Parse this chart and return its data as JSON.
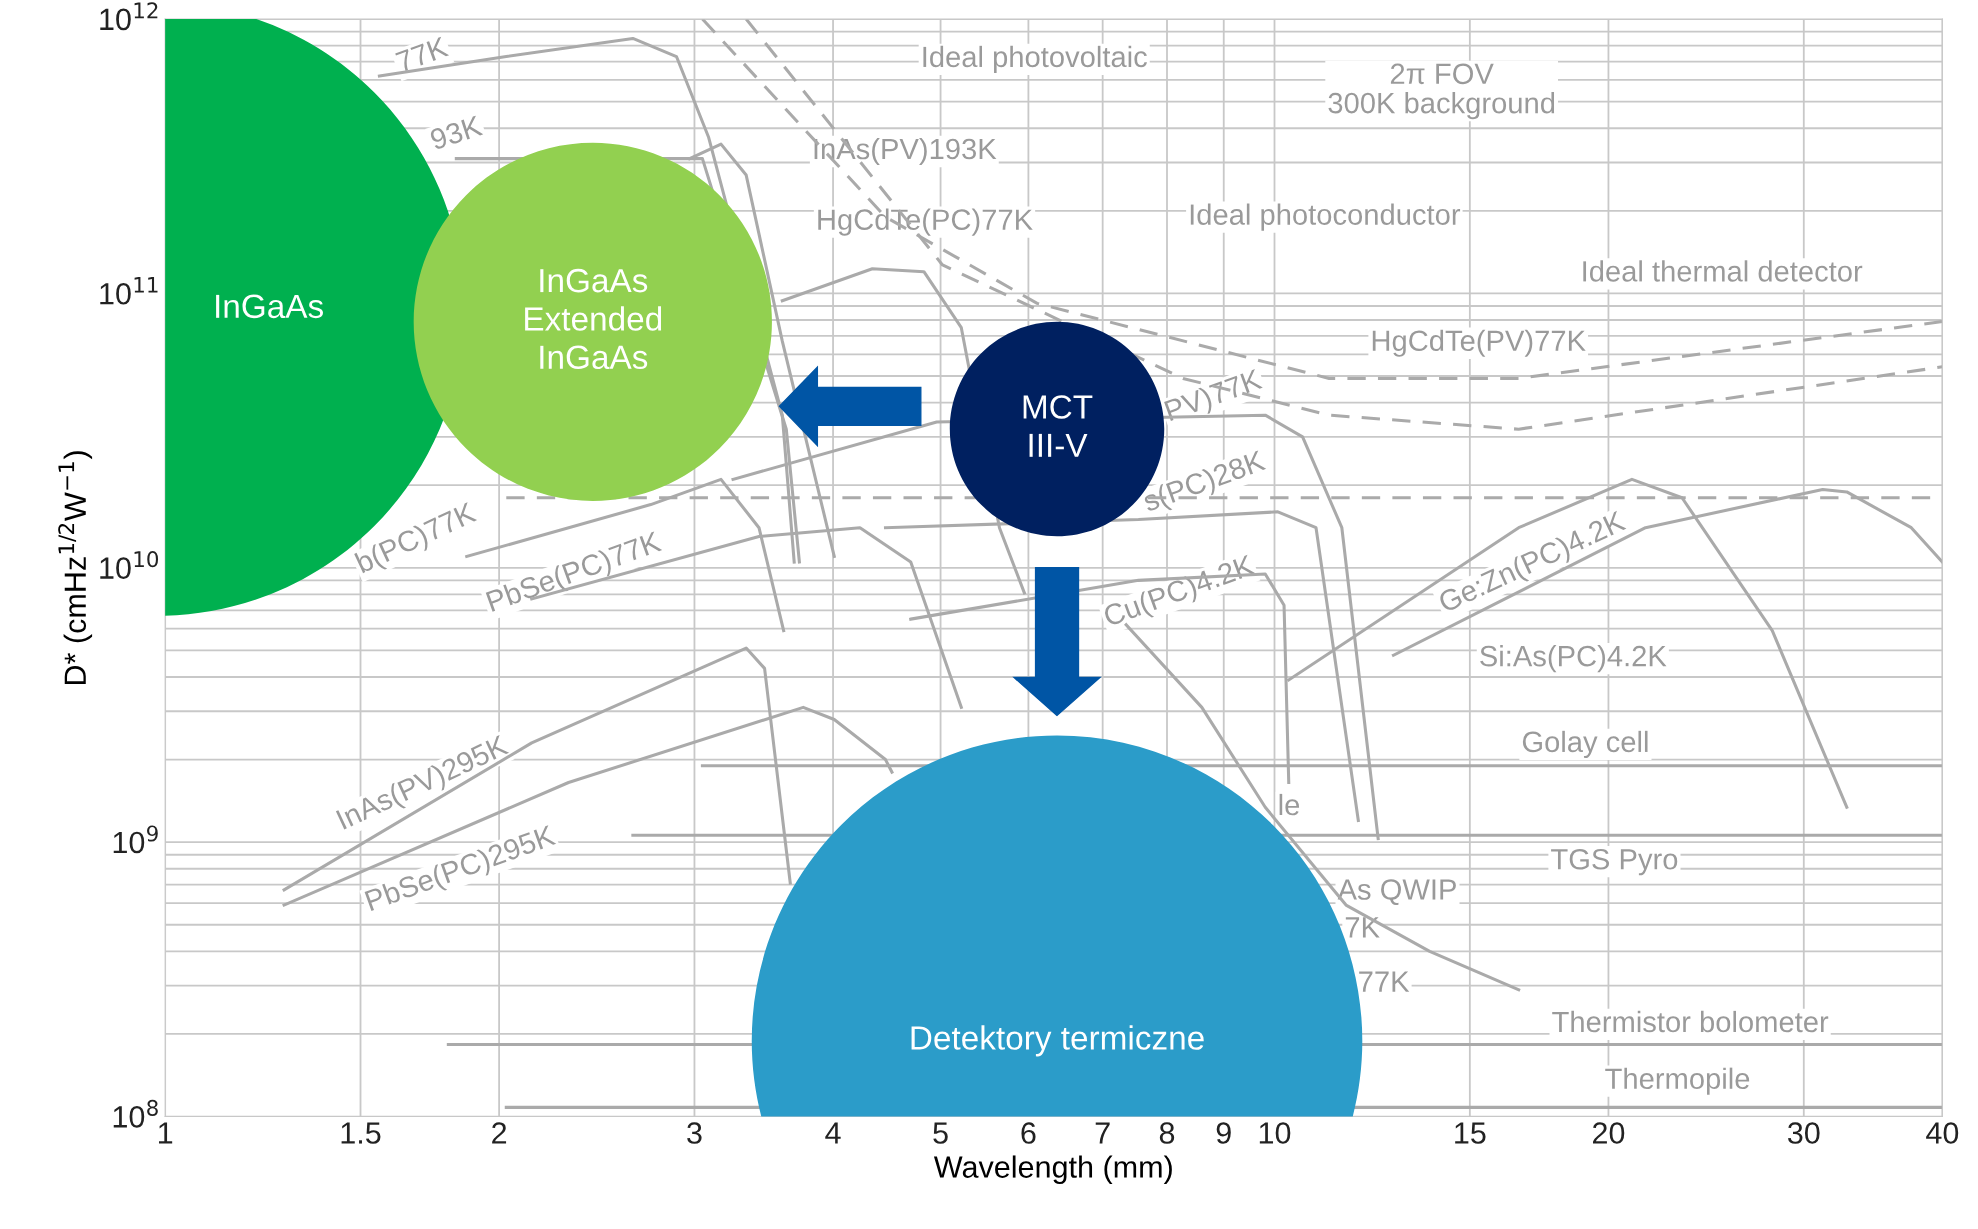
{
  "chart_data": {
    "type": "line",
    "xlabel": "Wavelength (mm)",
    "ylabel": "D* (cmHz$^{1/2}$W$^{−1}$)",
    "log": "xy",
    "grid": true,
    "xlim": [
      1,
      40
    ],
    "xticks": [
      1,
      1.5,
      2,
      3,
      4,
      5,
      6,
      7,
      8,
      9,
      10,
      15,
      20,
      30,
      40
    ],
    "ylim": [
      100000000.0,
      1000000000000.0
    ],
    "yticks": [
      {
        "value": 100000000.0,
        "label": "10$^{8}$"
      },
      {
        "value": 1000000000.0,
        "label": "10$^{9}$"
      },
      {
        "value": 10000000000.0,
        "label": "10$^{10}$"
      },
      {
        "value": 100000000000.0,
        "label": "10$^{11}$"
      },
      {
        "value": 1000000000000.0,
        "label": "10$^{12}$"
      }
    ],
    "series": [
      {
        "color": "#aaaaaa",
        "line_style": "dashed",
        "x": [
          3.05,
          4.46,
          6.11,
          11.2,
          16.6,
          40
        ],
        "values": [
          1000000000000.0,
          190000000000.0,
          92000000000.0,
          49000000000.0,
          49000000000.0,
          79000000000.0
        ]
      },
      {
        "color": "#aaaaaa",
        "line_style": "dashed",
        "x": [
          3.34,
          5.02,
          8.27,
          11.2,
          16.6,
          40
        ],
        "values": [
          1000000000000.0,
          127000000000.0,
          49000000000.0,
          36000000000.0,
          32000000000.0,
          54000000000.0
        ]
      },
      {
        "color": "#aaaaaa",
        "line_style": "dashed",
        "x": [
          2.03,
          40
        ],
        "values": [
          18000000000.0,
          18000000000.0
        ]
      },
      {
        "color": "#aaaaaa",
        "line_style": "solid",
        "x": [
          1.56,
          2.03,
          2.64,
          2.89,
          3.09,
          3.6,
          3.69
        ],
        "values": [
          620000000000.0,
          730000000000.0,
          850000000000.0,
          730000000000.0,
          370000000000.0,
          36000000000.0,
          10500000000.0
        ]
      },
      {
        "color": "#aaaaaa",
        "line_style": "solid",
        "x": [
          1.83,
          3.05,
          3.63,
          3.73
        ],
        "values": [
          310000000000.0,
          310000000000.0,
          32000000000.0,
          10500000000.0
        ]
      },
      {
        "color": "#aaaaaa",
        "line_style": "solid",
        "x": [
          2.97,
          3.17,
          3.34,
          3.6,
          4.01
        ],
        "values": [
          310000000000.0,
          350000000000.0,
          270000000000.0,
          67000000000.0,
          11000000000.0
        ]
      },
      {
        "color": "#aaaaaa",
        "line_style": "solid",
        "x": [
          3.6,
          4.34,
          4.83,
          5.22,
          5.65,
          5.95
        ],
        "values": [
          94000000000.0,
          123000000000.0,
          120000000000.0,
          75000000000.0,
          14000000000.0,
          8100000000.0
        ]
      },
      {
        "color": "#aaaaaa",
        "line_style": "solid",
        "x": [
          3.25,
          4.96,
          9.81,
          10.6,
          11.5,
          12.4
        ],
        "values": [
          21000000000.0,
          34000000000.0,
          36000000000.0,
          30000000000.0,
          14000000000.0,
          1030000000.0
        ]
      },
      {
        "color": "#aaaaaa",
        "line_style": "solid",
        "x": [
          1.87,
          2.74,
          3.17,
          3.43,
          3.61
        ],
        "values": [
          11000000000.0,
          17000000000.0,
          21000000000.0,
          14000000000.0,
          5900000000.0
        ]
      },
      {
        "color": "#aaaaaa",
        "line_style": "solid",
        "x": [
          2.14,
          3.43,
          4.23,
          4.7,
          5.22
        ],
        "values": [
          7700000000.0,
          13000000000.0,
          14000000000.0,
          10500000000.0,
          3100000000.0
        ]
      },
      {
        "color": "#aaaaaa",
        "line_style": "solid",
        "x": [
          4.46,
          7.54,
          10.07,
          10.9,
          11.9
        ],
        "values": [
          14000000000.0,
          15000000000.0,
          16000000000.0,
          14000000000.0,
          1200000000.0
        ]
      },
      {
        "color": "#aaaaaa",
        "line_style": "solid",
        "x": [
          4.7,
          7.54,
          9.81,
          10.2,
          10.3
        ],
        "values": [
          6500000000.0,
          9000000000.0,
          9500000000.0,
          7300000000.0,
          1650000000.0
        ]
      },
      {
        "color": "#aaaaaa",
        "line_style": "solid",
        "x": [
          10.3,
          16.6,
          21,
          23.3,
          28.1,
          32.8
        ],
        "values": [
          3900000000.0,
          14000000000.0,
          21000000000.0,
          18000000000.0,
          5900000000.0,
          1340000000.0
        ]
      },
      {
        "color": "#aaaaaa",
        "line_style": "solid",
        "x": [
          12.8,
          21.6,
          31.2,
          32.8,
          37.5,
          40
        ],
        "values": [
          4800000000.0,
          14000000000.0,
          19300000000.0,
          18900000000.0,
          14000000000.0,
          10500000000.0
        ]
      },
      {
        "color": "#aaaaaa",
        "line_style": "solid",
        "x": [
          3.05,
          40
        ],
        "values": [
          1900000000.0,
          1900000000.0
        ]
      },
      {
        "color": "#aaaaaa",
        "line_style": "solid",
        "x": [
          2.64,
          40
        ],
        "values": [
          1060000000.0,
          1060000000.0
        ]
      },
      {
        "color": "#aaaaaa",
        "line_style": "solid",
        "x": [
          1.8,
          40
        ],
        "values": [
          183000000.0,
          183000000.0
        ]
      },
      {
        "color": "#aaaaaa",
        "line_style": "solid",
        "x": [
          2.03,
          40
        ],
        "values": [
          108000000.0,
          108000000.0
        ]
      },
      {
        "color": "#aaaaaa",
        "line_style": "solid",
        "x": [
          1.28,
          2.14,
          3.34,
          3.47,
          3.66
        ],
        "values": [
          670000000.0,
          2300000000.0,
          5100000000.0,
          4300000000.0,
          710000000.0
        ]
      },
      {
        "color": "#aaaaaa",
        "line_style": "solid",
        "x": [
          1.28,
          2.31,
          3.76,
          4.01,
          4.46,
          4.52
        ],
        "values": [
          590000000.0,
          1650000000.0,
          3100000000.0,
          2800000000.0,
          2000000000.0,
          1800000000.0
        ]
      },
      {
        "color": "#aaaaaa",
        "line_style": "solid",
        "x": [
          7.35,
          8.6,
          9.81,
          11.6,
          13.8,
          16.6
        ],
        "values": [
          6200000000.0,
          3100000000.0,
          1340000000.0,
          590000000.0,
          400000000.0,
          290000000.0
        ]
      }
    ],
    "annotations": [
      "InGaAs",
      "InGaAs\nExtended\nInGaAs",
      "MCT\nIII-V",
      "Detektory termiczne",
      "77K",
      "93K",
      "Ideal photovoltaic",
      "2π FOV\n300K background",
      "InAs(PV)193K",
      "HgCdTe(PC)77K",
      "Ideal photoconductor",
      "Ideal thermal detector",
      "HgCdTe(PV)77K",
      "PV)77K",
      "s(PC)28K",
      "b(PC)77K",
      "PbSe(PC)77K",
      "Cu(PC)4.2K",
      "Ge:Zn(PC)4.2K",
      "Si:As(PC)4.2K",
      "Golay cell",
      "InAs(PV)295K",
      "PbSe(PC)295K",
      "le",
      "TGS Pyro",
      "As QWIP",
      "7K",
      "77K",
      "Thermistor bolometer",
      "Thermopile"
    ]
  }
}
